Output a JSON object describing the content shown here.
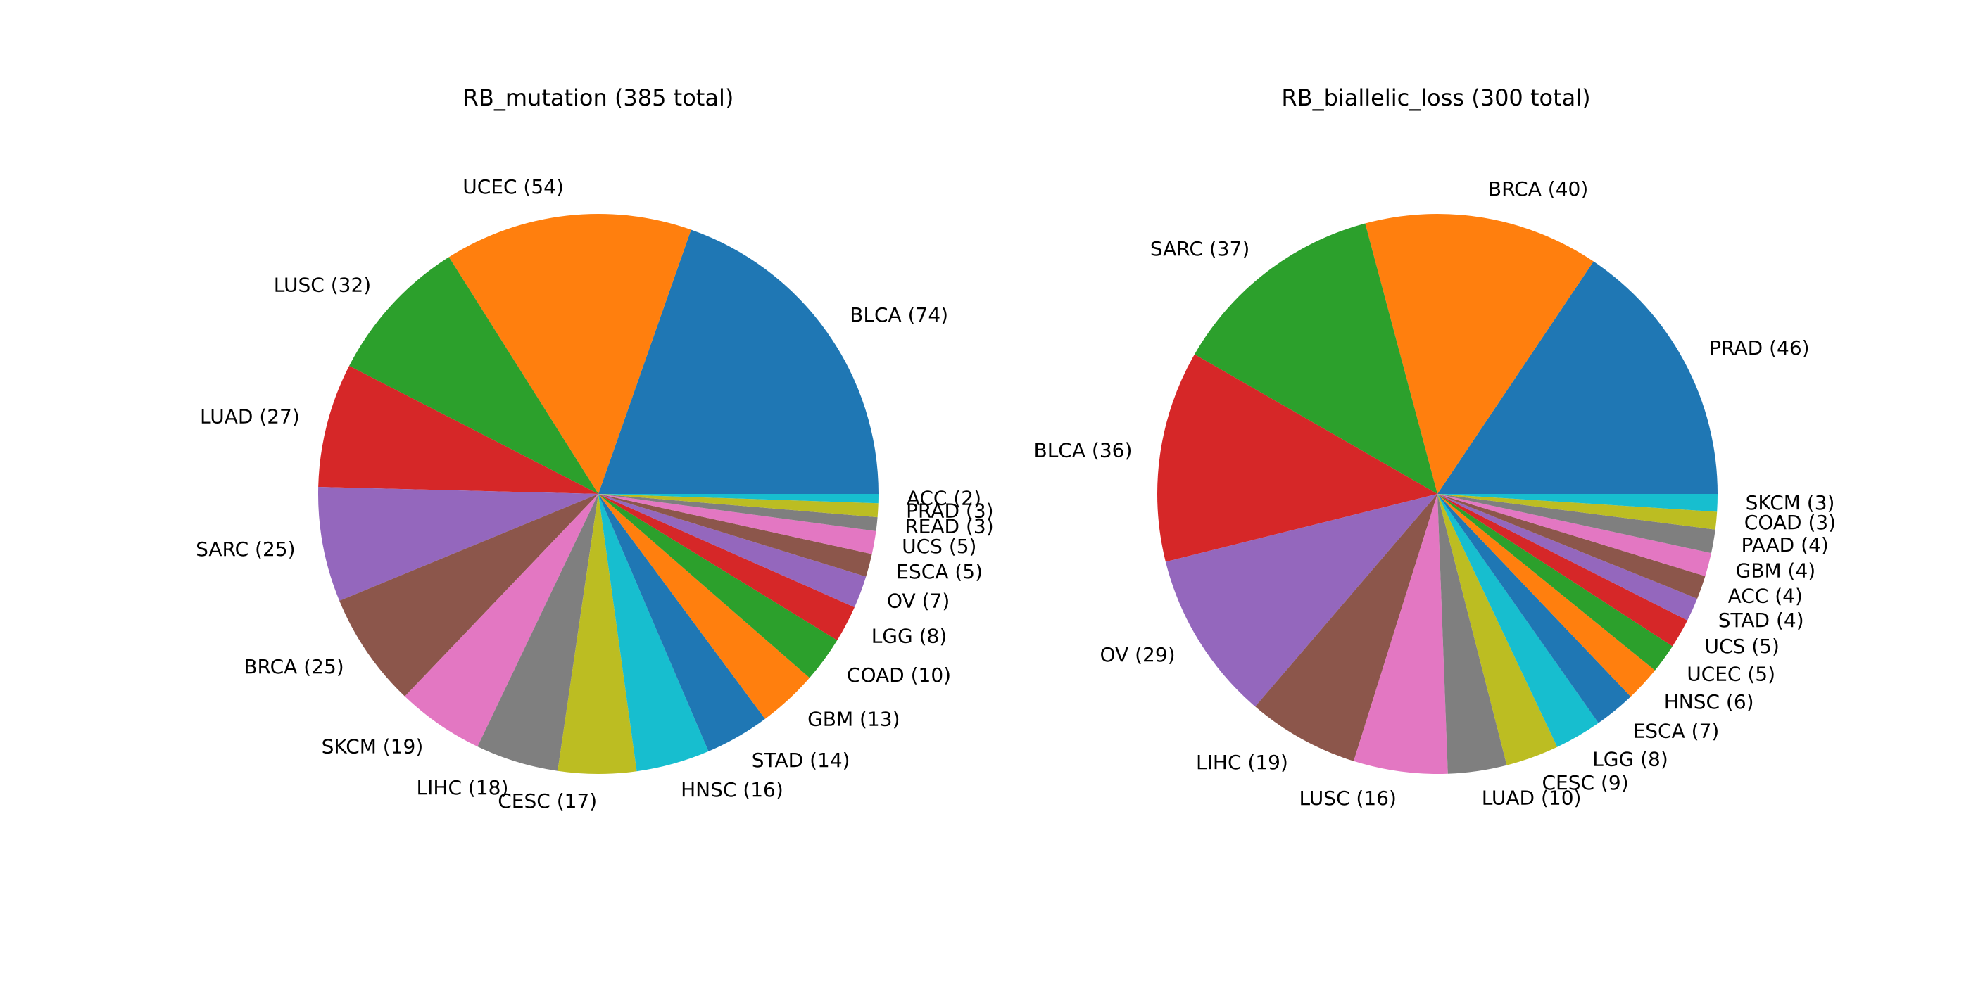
{
  "chart_data": [
    {
      "type": "pie",
      "title": "RB_mutation (385 total)",
      "start_angle_deg": 0,
      "direction": "counterclockwise",
      "slices": [
        {
          "label": "BLCA (74)",
          "value": 74,
          "color": "#1f77b4"
        },
        {
          "label": "UCEC (54)",
          "value": 54,
          "color": "#ff7f0e"
        },
        {
          "label": "LUSC (32)",
          "value": 32,
          "color": "#2ca02c"
        },
        {
          "label": "LUAD (27)",
          "value": 27,
          "color": "#d62728"
        },
        {
          "label": "SARC (25)",
          "value": 25,
          "color": "#9467bd"
        },
        {
          "label": "BRCA (25)",
          "value": 25,
          "color": "#8c564b"
        },
        {
          "label": "SKCM (19)",
          "value": 19,
          "color": "#e377c2"
        },
        {
          "label": "LIHC (18)",
          "value": 18,
          "color": "#7f7f7f"
        },
        {
          "label": "CESC (17)",
          "value": 17,
          "color": "#bcbd22"
        },
        {
          "label": "HNSC (16)",
          "value": 16,
          "color": "#17becf"
        },
        {
          "label": "STAD (14)",
          "value": 14,
          "color": "#1f77b4"
        },
        {
          "label": "GBM (13)",
          "value": 13,
          "color": "#ff7f0e"
        },
        {
          "label": "COAD (10)",
          "value": 10,
          "color": "#2ca02c"
        },
        {
          "label": "LGG (8)",
          "value": 8,
          "color": "#d62728"
        },
        {
          "label": "OV (7)",
          "value": 7,
          "color": "#9467bd"
        },
        {
          "label": "ESCA (5)",
          "value": 5,
          "color": "#8c564b"
        },
        {
          "label": "UCS (5)",
          "value": 5,
          "color": "#e377c2"
        },
        {
          "label": "READ (3)",
          "value": 3,
          "color": "#7f7f7f"
        },
        {
          "label": "PRAD (3)",
          "value": 3,
          "color": "#bcbd22"
        },
        {
          "label": "ACC (2)",
          "value": 2,
          "color": "#17becf"
        }
      ]
    },
    {
      "type": "pie",
      "title": "RB_biallelic_loss (300 total)",
      "start_angle_deg": 0,
      "direction": "counterclockwise",
      "slices": [
        {
          "label": "PRAD (46)",
          "value": 46,
          "color": "#1f77b4"
        },
        {
          "label": "BRCA (40)",
          "value": 40,
          "color": "#ff7f0e"
        },
        {
          "label": "SARC (37)",
          "value": 37,
          "color": "#2ca02c"
        },
        {
          "label": "BLCA (36)",
          "value": 36,
          "color": "#d62728"
        },
        {
          "label": "OV (29)",
          "value": 29,
          "color": "#9467bd"
        },
        {
          "label": "LIHC (19)",
          "value": 19,
          "color": "#8c564b"
        },
        {
          "label": "LUSC (16)",
          "value": 16,
          "color": "#e377c2"
        },
        {
          "label": "LUAD (10)",
          "value": 10,
          "color": "#7f7f7f"
        },
        {
          "label": "CESC (9)",
          "value": 9,
          "color": "#bcbd22"
        },
        {
          "label": "LGG (8)",
          "value": 8,
          "color": "#17becf"
        },
        {
          "label": "ESCA (7)",
          "value": 7,
          "color": "#1f77b4"
        },
        {
          "label": "HNSC (6)",
          "value": 6,
          "color": "#ff7f0e"
        },
        {
          "label": "UCEC (5)",
          "value": 5,
          "color": "#2ca02c"
        },
        {
          "label": "UCS (5)",
          "value": 5,
          "color": "#d62728"
        },
        {
          "label": "STAD (4)",
          "value": 4,
          "color": "#9467bd"
        },
        {
          "label": "ACC (4)",
          "value": 4,
          "color": "#8c564b"
        },
        {
          "label": "GBM (4)",
          "value": 4,
          "color": "#e377c2"
        },
        {
          "label": "PAAD (4)",
          "value": 4,
          "color": "#7f7f7f"
        },
        {
          "label": "COAD (3)",
          "value": 3,
          "color": "#bcbd22"
        },
        {
          "label": "SKCM (3)",
          "value": 3,
          "color": "#17becf"
        }
      ]
    }
  ]
}
